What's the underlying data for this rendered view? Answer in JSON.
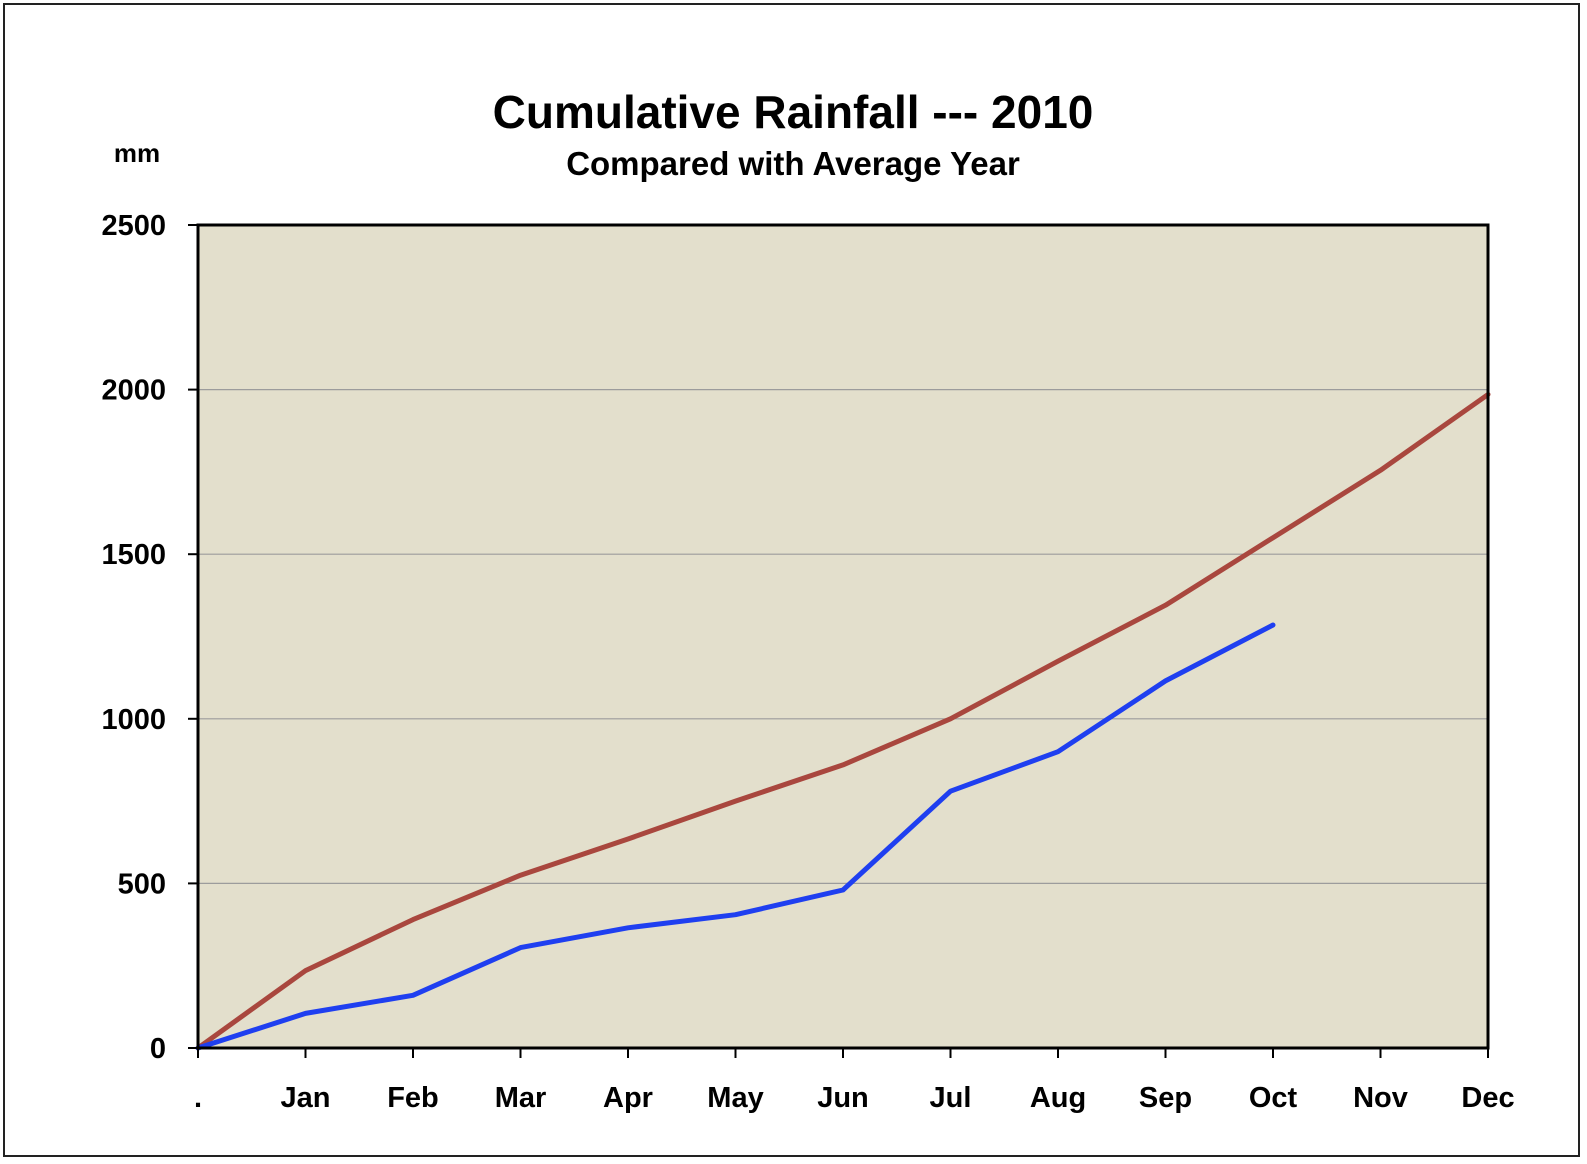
{
  "chart_data": {
    "type": "line",
    "title": "Cumulative Rainfall --- 2010",
    "subtitle": "Compared with Average Year",
    "ylabel": "mm",
    "xlabel": "",
    "categories": [
      ".",
      "Jan",
      "Feb",
      "Mar",
      "Apr",
      "May",
      "Jun",
      "Jul",
      "Aug",
      "Sep",
      "Oct",
      "Nov",
      "Dec"
    ],
    "ylim": [
      0,
      2500
    ],
    "yticks": [
      "0",
      "500",
      "1000",
      "1500",
      "2000",
      "2500"
    ],
    "grid": true,
    "series": [
      {
        "color": "#a9473e",
        "values": [
          0,
          235,
          390,
          525,
          635,
          750,
          860,
          1000,
          1175,
          1345,
          1550,
          1755,
          1985
        ]
      },
      {
        "color": "#1f3ff0",
        "values": [
          0,
          105,
          160,
          305,
          365,
          405,
          480,
          780,
          900,
          1115,
          1285,
          null,
          null
        ]
      }
    ],
    "plot_background": "#e3dfcc"
  }
}
